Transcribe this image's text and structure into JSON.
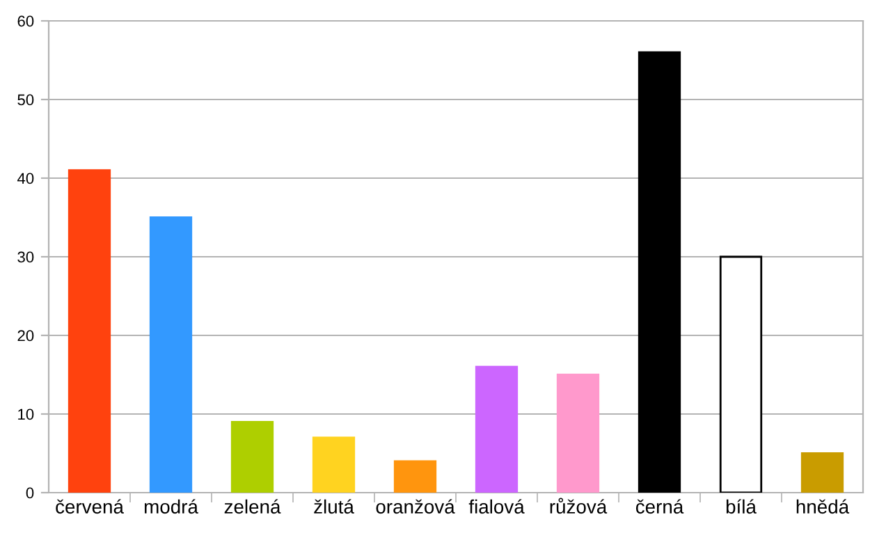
{
  "chart_data": {
    "type": "bar",
    "categories": [
      "červená",
      "modrá",
      "zelená",
      "žlutá",
      "oranžová",
      "fialová",
      "růžová",
      "černá",
      "bílá",
      "hnědá"
    ],
    "values": [
      41,
      35,
      9,
      7,
      4,
      16,
      15,
      56,
      30,
      5
    ],
    "colors": [
      "#ff420e",
      "#3399ff",
      "#aecf00",
      "#ffd320",
      "#ff950e",
      "#cc66ff",
      "#ff99cc",
      "#000000",
      "#ffffff",
      "#c99c00"
    ],
    "ylim": [
      0,
      60
    ],
    "yticks": [
      0,
      10,
      20,
      30,
      40,
      50,
      60
    ],
    "grid": "y",
    "legend": false
  }
}
